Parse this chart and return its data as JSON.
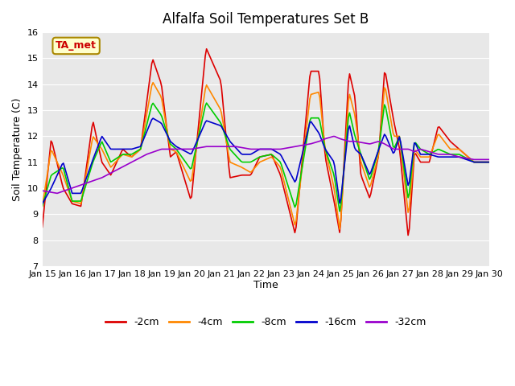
{
  "title": "Alfalfa Soil Temperatures Set B",
  "xlabel": "Time",
  "ylabel": "Soil Temperature (C)",
  "ylim": [
    7.0,
    16.0
  ],
  "yticks": [
    7.0,
    8.0,
    9.0,
    10.0,
    11.0,
    12.0,
    13.0,
    14.0,
    15.0,
    16.0
  ],
  "xtick_labels": [
    "Jan 15",
    "Jan 16",
    "Jan 17",
    "Jan 18",
    "Jan 19",
    "Jan 20",
    "Jan 21",
    "Jan 22",
    "Jan 23",
    "Jan 24",
    "Jan 25",
    "Jan 26",
    "Jan 27",
    "Jan 28",
    "Jan 29",
    "Jan 30"
  ],
  "background_color": "#e8e8e8",
  "plot_bg_color": "#e8e8e8",
  "line_colors": {
    "-2cm": "#dd0000",
    "-4cm": "#ff8800",
    "-8cm": "#00cc00",
    "-16cm": "#0000cc",
    "-32cm": "#9900cc"
  },
  "annotation_text": "TA_met",
  "annotation_color": "#cc0000",
  "annotation_bg": "#ffffcc",
  "annotation_border": "#aa8800"
}
